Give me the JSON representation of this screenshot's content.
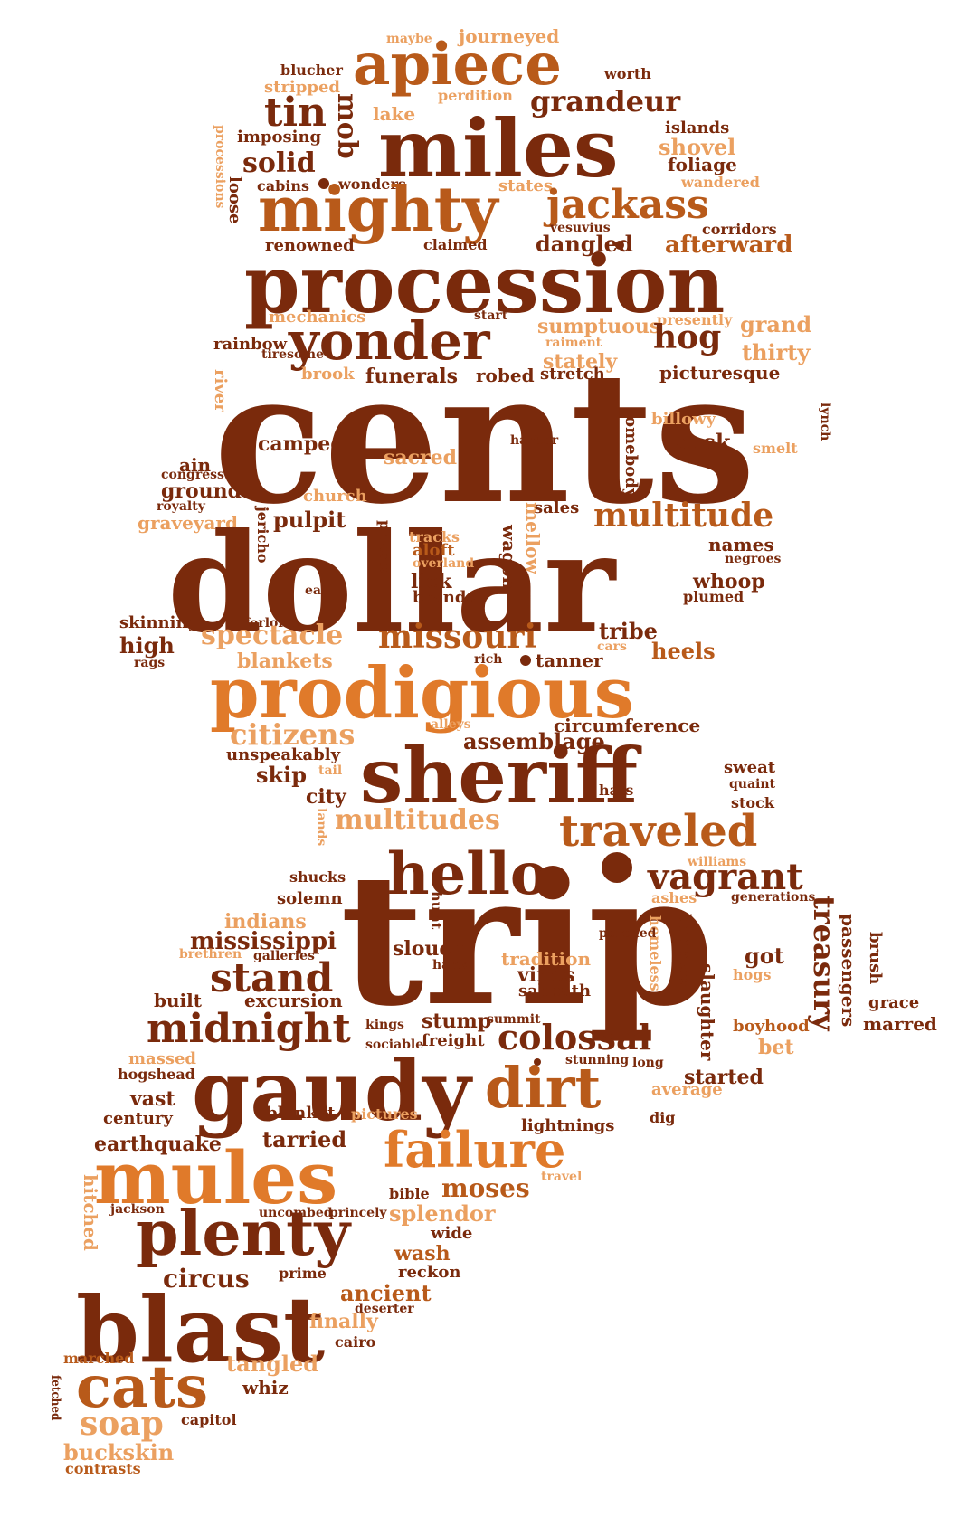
{
  "colors": {
    "dark": "#7a2a0c",
    "mid": "#b85a1a",
    "orange": "#e07a2a",
    "light": "#eba060"
  },
  "words": [
    {
      "id": "maybe",
      "text": "maybe",
      "c": "light"
    },
    {
      "id": "journeyed",
      "text": "journeyed",
      "c": "light"
    },
    {
      "id": "blucher",
      "text": "blucher",
      "c": "dark"
    },
    {
      "id": "apiece",
      "text": "apiece",
      "c": "mid"
    },
    {
      "id": "worth",
      "text": "worth",
      "c": "dark"
    },
    {
      "id": "stripped",
      "text": "stripped",
      "c": "light"
    },
    {
      "id": "perdition",
      "text": "perdition",
      "c": "light"
    },
    {
      "id": "tin",
      "text": "tin",
      "c": "dark"
    },
    {
      "id": "mob",
      "text": "mob",
      "c": "dark"
    },
    {
      "id": "lake",
      "text": "lake",
      "c": "light"
    },
    {
      "id": "grandeur",
      "text": "grandeur",
      "c": "dark"
    },
    {
      "id": "islands",
      "text": "islands",
      "c": "dark"
    },
    {
      "id": "imposing",
      "text": "imposing",
      "c": "dark"
    },
    {
      "id": "miles",
      "text": "miles",
      "c": "dark"
    },
    {
      "id": "shovel",
      "text": "shovel",
      "c": "light"
    },
    {
      "id": "processions",
      "text": "processions",
      "c": "light"
    },
    {
      "id": "solid",
      "text": "solid",
      "c": "dark"
    },
    {
      "id": "foliage",
      "text": "foliage",
      "c": "dark"
    },
    {
      "id": "loose",
      "text": "loose",
      "c": "dark"
    },
    {
      "id": "cabins",
      "text": "cabins",
      "c": "dark"
    },
    {
      "id": "wonders",
      "text": "wonders",
      "c": "dark"
    },
    {
      "id": "states",
      "text": "states",
      "c": "light"
    },
    {
      "id": "wandered",
      "text": "wandered",
      "c": "light"
    },
    {
      "id": "mighty",
      "text": "mighty",
      "c": "mid"
    },
    {
      "id": "jackass",
      "text": "jackass",
      "c": "mid"
    },
    {
      "id": "vesuvius",
      "text": "vesuvius",
      "c": "dark"
    },
    {
      "id": "corridors",
      "text": "corridors",
      "c": "dark"
    },
    {
      "id": "renowned",
      "text": "renowned",
      "c": "dark"
    },
    {
      "id": "claimed",
      "text": "claimed",
      "c": "dark"
    },
    {
      "id": "dangled",
      "text": "dangled",
      "c": "dark"
    },
    {
      "id": "afterward",
      "text": "afterward",
      "c": "mid"
    },
    {
      "id": "procession",
      "text": "procession",
      "c": "dark"
    },
    {
      "id": "mechanics",
      "text": "mechanics",
      "c": "light"
    },
    {
      "id": "start",
      "text": "start",
      "c": "dark"
    },
    {
      "id": "presently",
      "text": "presently",
      "c": "light"
    },
    {
      "id": "sumptuous",
      "text": "sumptuous",
      "c": "light"
    },
    {
      "id": "grand",
      "text": "grand",
      "c": "light"
    },
    {
      "id": "yonder",
      "text": "yonder",
      "c": "dark"
    },
    {
      "id": "rainbow",
      "text": "rainbow",
      "c": "dark"
    },
    {
      "id": "tiresome",
      "text": "tiresome",
      "c": "dark"
    },
    {
      "id": "raiment",
      "text": "raiment",
      "c": "light"
    },
    {
      "id": "hog",
      "text": "hog",
      "c": "dark"
    },
    {
      "id": "thirty",
      "text": "thirty",
      "c": "light"
    },
    {
      "id": "stately",
      "text": "stately",
      "c": "light"
    },
    {
      "id": "brook",
      "text": "brook",
      "c": "light"
    },
    {
      "id": "funerals",
      "text": "funerals",
      "c": "dark"
    },
    {
      "id": "robed",
      "text": "robed",
      "c": "dark"
    },
    {
      "id": "stretch",
      "text": "stretch",
      "c": "dark"
    },
    {
      "id": "picturesque",
      "text": "picturesque",
      "c": "dark"
    },
    {
      "id": "river",
      "text": "river",
      "c": "light"
    },
    {
      "id": "cents",
      "text": "cents",
      "c": "dark"
    },
    {
      "id": "billowy",
      "text": "billowy",
      "c": "light"
    },
    {
      "id": "lynch",
      "text": "lynch",
      "c": "dark"
    },
    {
      "id": "camped",
      "text": "camped",
      "c": "dark"
    },
    {
      "id": "harbor",
      "text": "harbor",
      "c": "dark"
    },
    {
      "id": "buck",
      "text": "buck",
      "c": "dark"
    },
    {
      "id": "smelt",
      "text": "smelt",
      "c": "light"
    },
    {
      "id": "ain",
      "text": "ain",
      "c": "dark"
    },
    {
      "id": "sacred",
      "text": "sacred",
      "c": "light"
    },
    {
      "id": "somebody",
      "text": "somebody",
      "c": "dark"
    },
    {
      "id": "congress",
      "text": "congress",
      "c": "dark"
    },
    {
      "id": "ground",
      "text": "ground",
      "c": "dark"
    },
    {
      "id": "church",
      "text": "church",
      "c": "light"
    },
    {
      "id": "royalty",
      "text": "royalty",
      "c": "dark"
    },
    {
      "id": "sales",
      "text": "sales",
      "c": "dark"
    },
    {
      "id": "graveyard",
      "text": "graveyard",
      "c": "light"
    },
    {
      "id": "pulpit",
      "text": "pulpit",
      "c": "dark"
    },
    {
      "id": "multitude",
      "text": "multitude",
      "c": "mid"
    },
    {
      "id": "dollar",
      "text": "dollar",
      "c": "dark"
    },
    {
      "id": "jericho",
      "text": "jericho",
      "c": "dark"
    },
    {
      "id": "priests",
      "text": "priests",
      "c": "dark"
    },
    {
      "id": "tracks",
      "text": "tracks",
      "c": "light"
    },
    {
      "id": "aloft",
      "text": "aloft",
      "c": "mid"
    },
    {
      "id": "overland",
      "text": "overland",
      "c": "light"
    },
    {
      "id": "mellow",
      "text": "mellow",
      "c": "light"
    },
    {
      "id": "wagon",
      "text": "wagon",
      "c": "dark"
    },
    {
      "id": "names",
      "text": "names",
      "c": "dark"
    },
    {
      "id": "negroes",
      "text": "negroes",
      "c": "dark"
    },
    {
      "id": "lick",
      "text": "lick",
      "c": "dark"
    },
    {
      "id": "brands",
      "text": "brands",
      "c": "dark"
    },
    {
      "id": "whoop",
      "text": "whoop",
      "c": "dark"
    },
    {
      "id": "eat",
      "text": "eat",
      "c": "dark"
    },
    {
      "id": "plumed",
      "text": "plumed",
      "c": "dark"
    },
    {
      "id": "skinning",
      "text": "skinning",
      "c": "dark"
    },
    {
      "id": "forlorn",
      "text": "forlorn",
      "c": "dark"
    },
    {
      "id": "spectacle",
      "text": "spectacle",
      "c": "light"
    },
    {
      "id": "missouri",
      "text": "missouri",
      "c": "mid"
    },
    {
      "id": "tribe",
      "text": "tribe",
      "c": "dark"
    },
    {
      "id": "high",
      "text": "high",
      "c": "dark"
    },
    {
      "id": "cars",
      "text": "cars",
      "c": "light"
    },
    {
      "id": "heels",
      "text": "heels",
      "c": "mid"
    },
    {
      "id": "rags",
      "text": "rags",
      "c": "dark"
    },
    {
      "id": "blankets",
      "text": "blankets",
      "c": "light"
    },
    {
      "id": "rich",
      "text": "rich",
      "c": "dark"
    },
    {
      "id": "tanner",
      "text": "tanner",
      "c": "dark"
    },
    {
      "id": "prodigious",
      "text": "prodigious",
      "c": "orange"
    },
    {
      "id": "circumference",
      "text": "circumference",
      "c": "dark"
    },
    {
      "id": "citizens",
      "text": "citizens",
      "c": "light"
    },
    {
      "id": "alleys",
      "text": "alleys",
      "c": "light"
    },
    {
      "id": "assemblage",
      "text": "assemblage",
      "c": "dark"
    },
    {
      "id": "unspeakably",
      "text": "unspeakably",
      "c": "dark"
    },
    {
      "id": "sheriff",
      "text": "sheriff",
      "c": "dark"
    },
    {
      "id": "tail",
      "text": "tail",
      "c": "light"
    },
    {
      "id": "skip",
      "text": "skip",
      "c": "dark"
    },
    {
      "id": "sweat",
      "text": "sweat",
      "c": "dark"
    },
    {
      "id": "quaint",
      "text": "quaint",
      "c": "dark"
    },
    {
      "id": "hats",
      "text": "hats",
      "c": "dark"
    },
    {
      "id": "city",
      "text": "city",
      "c": "dark"
    },
    {
      "id": "stock",
      "text": "stock",
      "c": "dark"
    },
    {
      "id": "lands",
      "text": "lands",
      "c": "light"
    },
    {
      "id": "multitudes",
      "text": "multitudes",
      "c": "light"
    },
    {
      "id": "traveled",
      "text": "traveled",
      "c": "mid"
    },
    {
      "id": "williams",
      "text": "williams",
      "c": "light"
    },
    {
      "id": "hello",
      "text": "hello",
      "c": "dark"
    },
    {
      "id": "vagrant",
      "text": "vagrant",
      "c": "dark"
    },
    {
      "id": "shucks",
      "text": "shucks",
      "c": "dark"
    },
    {
      "id": "solemn",
      "text": "solemn",
      "c": "dark"
    },
    {
      "id": "ashes",
      "text": "ashes",
      "c": "light"
    },
    {
      "id": "generations",
      "text": "generations",
      "c": "dark"
    },
    {
      "id": "treasury",
      "text": "treasury",
      "c": "dark"
    },
    {
      "id": "trip",
      "text": "trip",
      "c": "dark"
    },
    {
      "id": "indians",
      "text": "indians",
      "c": "light"
    },
    {
      "id": "hunt",
      "text": "hunt",
      "c": "dark"
    },
    {
      "id": "homeless",
      "text": "homeless",
      "c": "light"
    },
    {
      "id": "banners",
      "text": "banners",
      "c": "dark"
    },
    {
      "id": "passengers",
      "text": "passengers",
      "c": "dark"
    },
    {
      "id": "brush",
      "text": "brush",
      "c": "dark"
    },
    {
      "id": "mississippi",
      "text": "mississippi",
      "c": "dark"
    },
    {
      "id": "slouch",
      "text": "slouch",
      "c": "dark"
    },
    {
      "id": "perched",
      "text": "perched",
      "c": "dark"
    },
    {
      "id": "brethren",
      "text": "brethren",
      "c": "light"
    },
    {
      "id": "galleries",
      "text": "galleries",
      "c": "dark"
    },
    {
      "id": "hank",
      "text": "hank",
      "c": "dark"
    },
    {
      "id": "tradition",
      "text": "tradition",
      "c": "light"
    },
    {
      "id": "got",
      "text": "got",
      "c": "dark"
    },
    {
      "id": "slaughter",
      "text": "slaughter",
      "c": "dark"
    },
    {
      "id": "stand",
      "text": "stand",
      "c": "dark"
    },
    {
      "id": "vines",
      "text": "vines",
      "c": "dark"
    },
    {
      "id": "hogs",
      "text": "hogs",
      "c": "light"
    },
    {
      "id": "sabbath",
      "text": "sabbath",
      "c": "dark"
    },
    {
      "id": "built",
      "text": "built",
      "c": "dark"
    },
    {
      "id": "excursion",
      "text": "excursion",
      "c": "dark"
    },
    {
      "id": "grace",
      "text": "grace",
      "c": "dark"
    },
    {
      "id": "stump",
      "text": "stump",
      "c": "dark"
    },
    {
      "id": "summit",
      "text": "summit",
      "c": "dark"
    },
    {
      "id": "kings",
      "text": "kings",
      "c": "dark"
    },
    {
      "id": "midnight",
      "text": "midnight",
      "c": "dark"
    },
    {
      "id": "boyhood",
      "text": "boyhood",
      "c": "mid"
    },
    {
      "id": "marred",
      "text": "marred",
      "c": "dark"
    },
    {
      "id": "sociable",
      "text": "sociable",
      "c": "dark"
    },
    {
      "id": "freight",
      "text": "freight",
      "c": "dark"
    },
    {
      "id": "colossal",
      "text": "colossal",
      "c": "dark"
    },
    {
      "id": "bet",
      "text": "bet",
      "c": "light"
    },
    {
      "id": "massed",
      "text": "massed",
      "c": "light"
    },
    {
      "id": "hogshead",
      "text": "hogshead",
      "c": "dark"
    },
    {
      "id": "gaudy",
      "text": "gaudy",
      "c": "dark"
    },
    {
      "id": "stunning",
      "text": "stunning",
      "c": "dark"
    },
    {
      "id": "long",
      "text": "long",
      "c": "dark"
    },
    {
      "id": "started",
      "text": "started",
      "c": "dark"
    },
    {
      "id": "vast",
      "text": "vast",
      "c": "dark"
    },
    {
      "id": "dirt",
      "text": "dirt",
      "c": "mid"
    },
    {
      "id": "average",
      "text": "average",
      "c": "light"
    },
    {
      "id": "century",
      "text": "century",
      "c": "dark"
    },
    {
      "id": "blanket",
      "text": "blanket",
      "c": "dark"
    },
    {
      "id": "pictures",
      "text": "pictures",
      "c": "light"
    },
    {
      "id": "dig",
      "text": "dig",
      "c": "dark"
    },
    {
      "id": "lightnings",
      "text": "lightnings",
      "c": "dark"
    },
    {
      "id": "earthquake",
      "text": "earthquake",
      "c": "dark"
    },
    {
      "id": "tarried",
      "text": "tarried",
      "c": "dark"
    },
    {
      "id": "failure",
      "text": "failure",
      "c": "orange"
    },
    {
      "id": "mules",
      "text": "mules",
      "c": "orange"
    },
    {
      "id": "travel",
      "text": "travel",
      "c": "light"
    },
    {
      "id": "hitched",
      "text": "hitched",
      "c": "light"
    },
    {
      "id": "moses",
      "text": "moses",
      "c": "mid"
    },
    {
      "id": "bible",
      "text": "bible",
      "c": "dark"
    },
    {
      "id": "jackson",
      "text": "jackson",
      "c": "dark"
    },
    {
      "id": "uncombed",
      "text": "uncombed",
      "c": "dark"
    },
    {
      "id": "princely",
      "text": "princely",
      "c": "dark"
    },
    {
      "id": "splendor",
      "text": "splendor",
      "c": "light"
    },
    {
      "id": "plenty",
      "text": "plenty",
      "c": "dark"
    },
    {
      "id": "wide",
      "text": "wide",
      "c": "dark"
    },
    {
      "id": "wash",
      "text": "wash",
      "c": "mid"
    },
    {
      "id": "prime",
      "text": "prime",
      "c": "dark"
    },
    {
      "id": "reckon",
      "text": "reckon",
      "c": "dark"
    },
    {
      "id": "circus",
      "text": "circus",
      "c": "dark"
    },
    {
      "id": "ancient",
      "text": "ancient",
      "c": "mid"
    },
    {
      "id": "blast",
      "text": "blast",
      "c": "dark"
    },
    {
      "id": "deserter",
      "text": "deserter",
      "c": "dark"
    },
    {
      "id": "finally",
      "text": "finally",
      "c": "light"
    },
    {
      "id": "cairo",
      "text": "cairo",
      "c": "dark"
    },
    {
      "id": "marched",
      "text": "marched",
      "c": "mid"
    },
    {
      "id": "tangled",
      "text": "tangled",
      "c": "light"
    },
    {
      "id": "cats",
      "text": "cats",
      "c": "mid"
    },
    {
      "id": "whiz",
      "text": "whiz",
      "c": "dark"
    },
    {
      "id": "fetched",
      "text": "fetched",
      "c": "dark"
    },
    {
      "id": "soap",
      "text": "soap",
      "c": "light"
    },
    {
      "id": "capitol",
      "text": "capitol",
      "c": "dark"
    },
    {
      "id": "buckskin",
      "text": "buckskin",
      "c": "light"
    },
    {
      "id": "contrasts",
      "text": "contrasts",
      "c": "mid"
    }
  ]
}
